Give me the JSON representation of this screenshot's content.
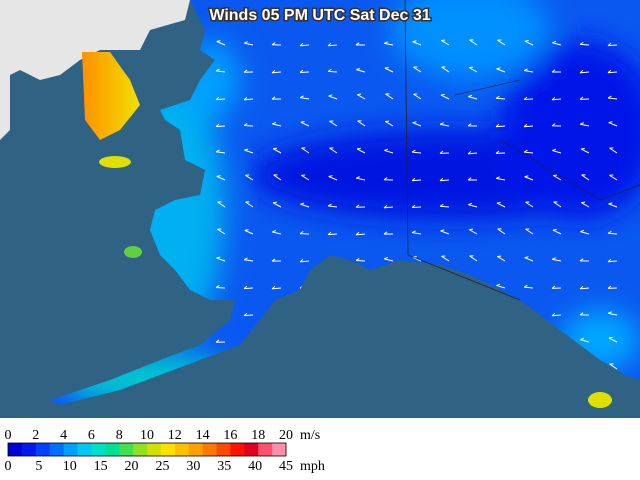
{
  "map": {
    "title": "Winds 05 PM UTC Sat Dec 31",
    "colorbar": {
      "colors": [
        "#0000d8",
        "#0018f0",
        "#0040ff",
        "#0070ff",
        "#00a0ff",
        "#00c8f0",
        "#00e0c8",
        "#00e090",
        "#40e050",
        "#90e020",
        "#d0e000",
        "#ffe000",
        "#ffc000",
        "#ffa000",
        "#ff7800",
        "#ff4800",
        "#ff1000",
        "#e00020",
        "#ff5070",
        "#ff90a8"
      ],
      "ms_ticks": [
        0,
        2,
        4,
        6,
        8,
        10,
        12,
        14,
        16,
        18,
        20
      ],
      "ms_unit": "m/s",
      "mph_ticks": [
        0,
        5,
        10,
        15,
        20,
        25,
        30,
        35,
        40,
        45
      ],
      "mph_unit": "mph"
    }
  }
}
